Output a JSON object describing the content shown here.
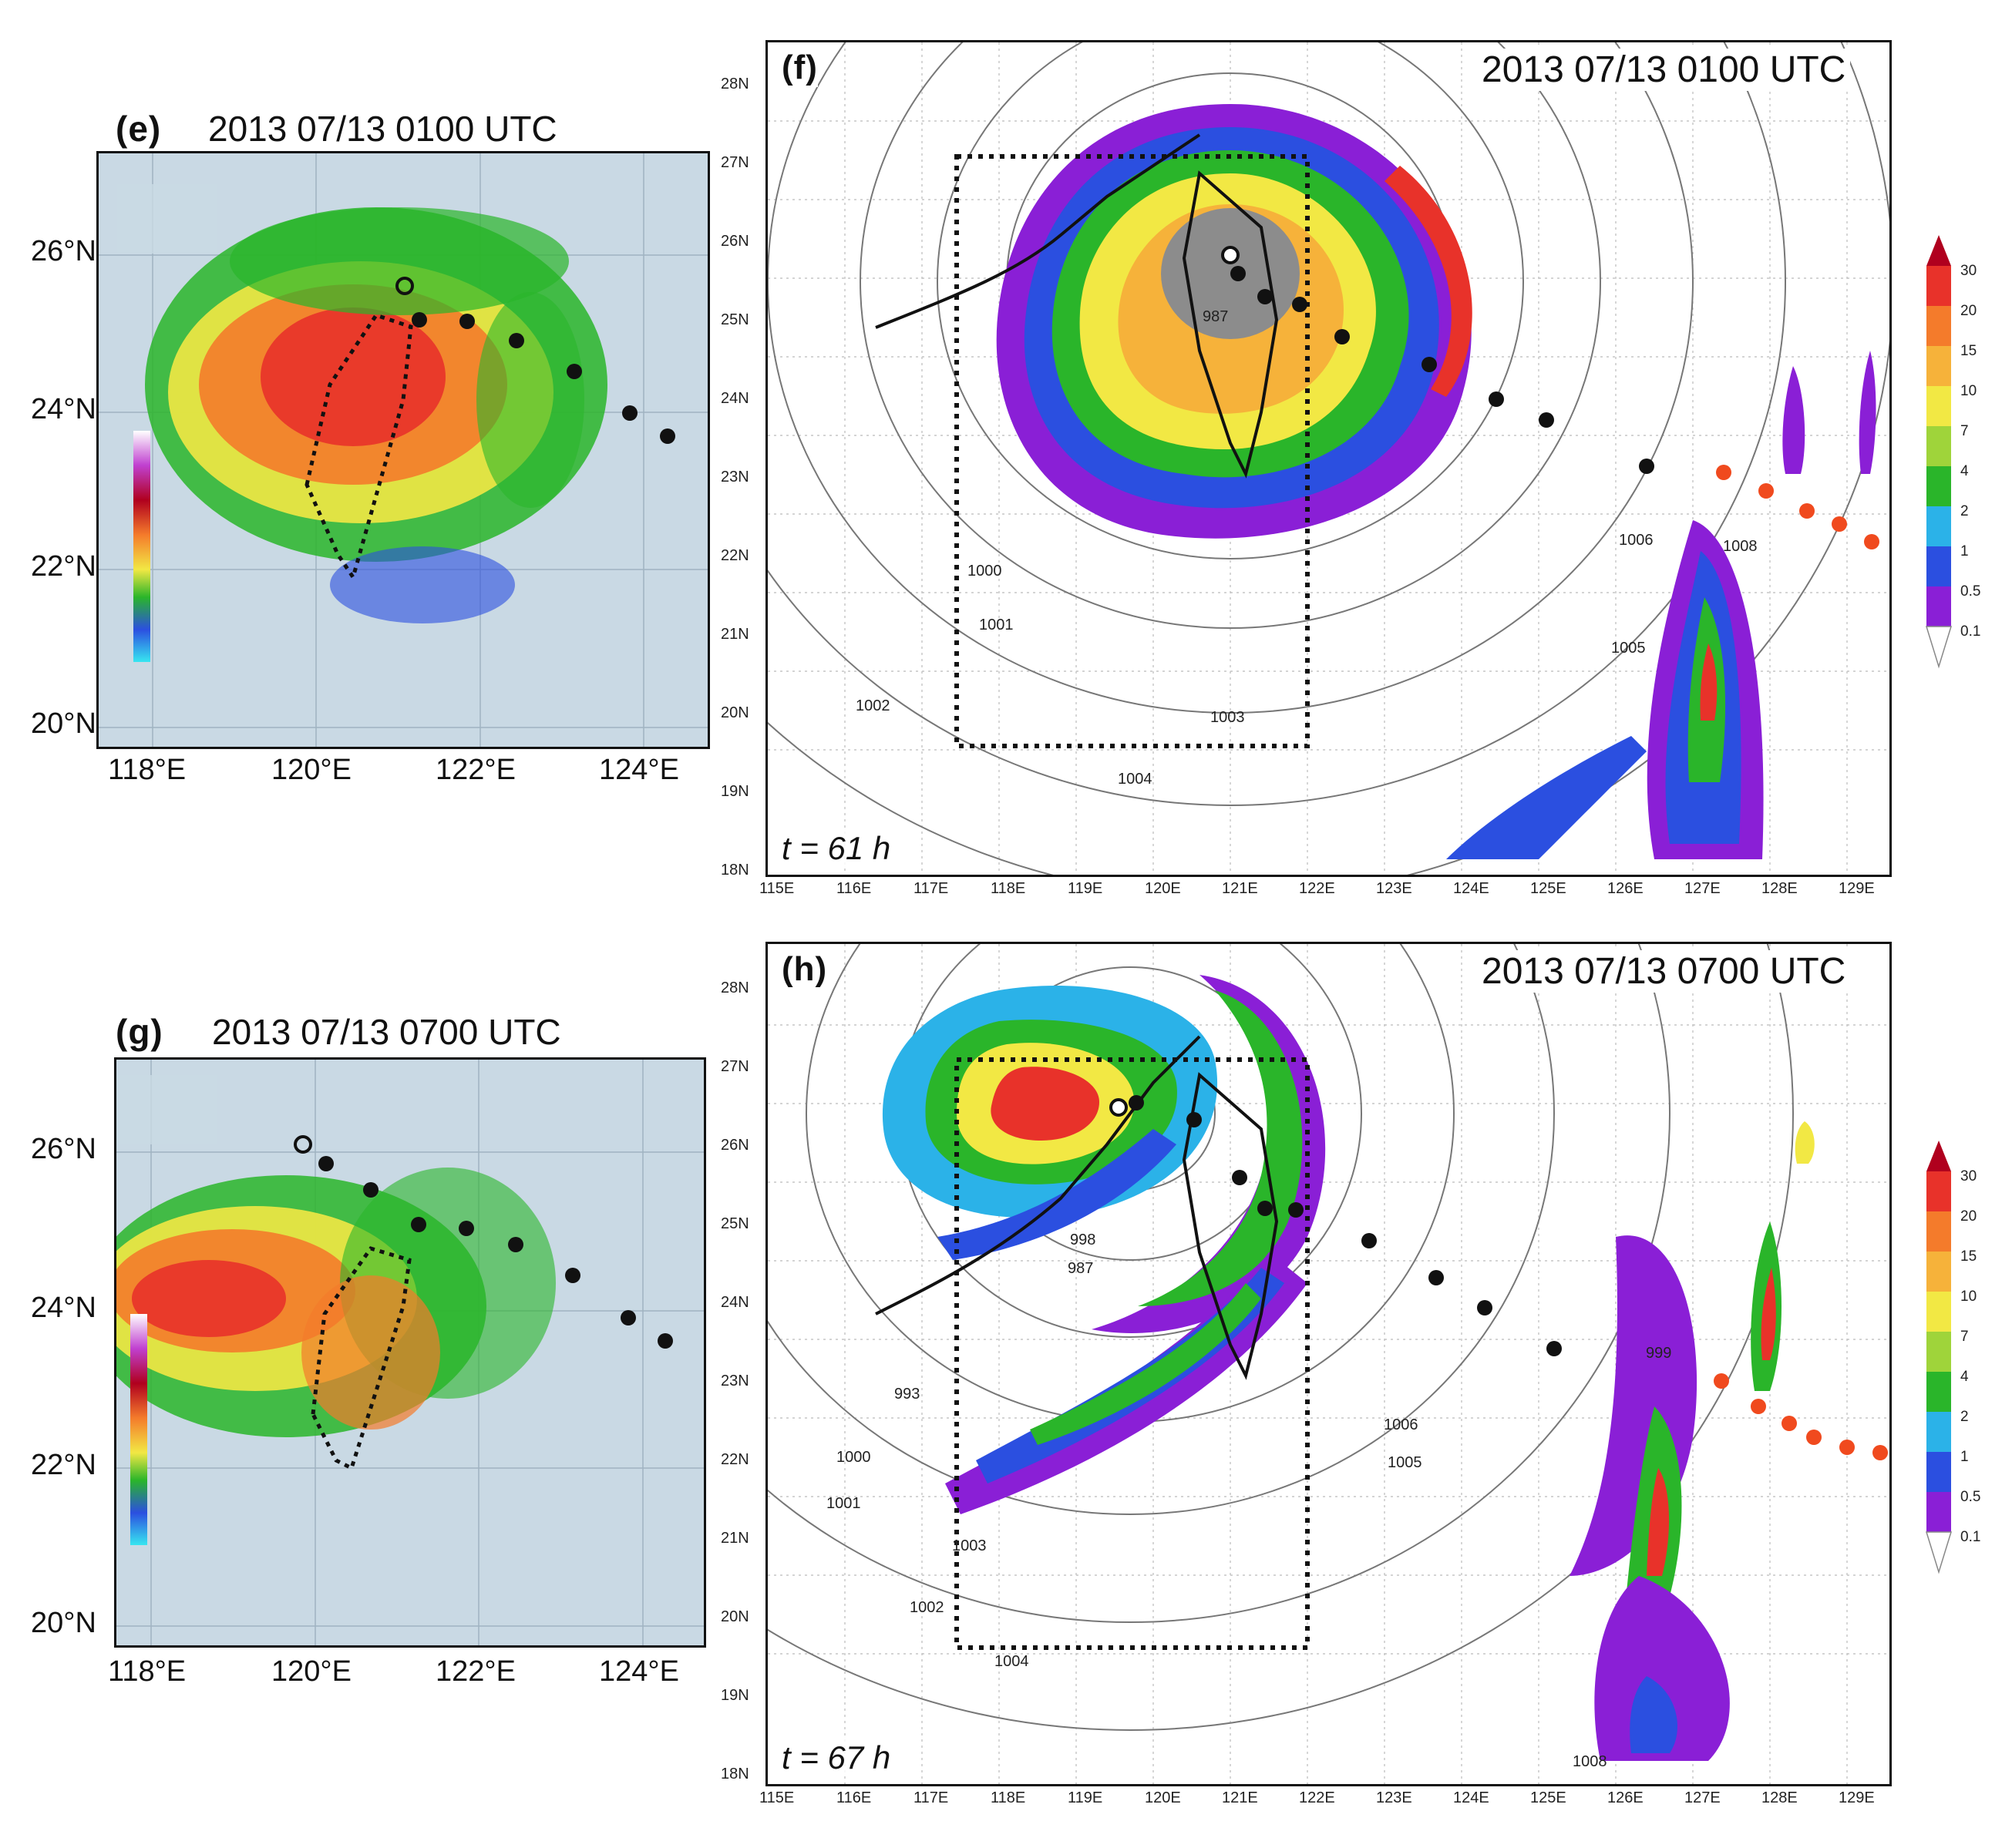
{
  "panels": [
    {
      "id": "e",
      "label": "(e)",
      "title": "2013 07/13 0100 UTC",
      "type": "radar"
    },
    {
      "id": "f",
      "label": "(f)",
      "title": "2013 07/13 0100 UTC",
      "time": "t = 61 h",
      "type": "wrf"
    },
    {
      "id": "g",
      "label": "(g)",
      "title": "2013 07/13 0700 UTC",
      "type": "radar"
    },
    {
      "id": "h",
      "label": "(h)",
      "title": "2013 07/13 0700 UTC",
      "time": "t = 67 h",
      "type": "wrf"
    }
  ],
  "radar_axes": {
    "lat_labels": [
      "26°N",
      "24°N",
      "22°N",
      "20°N"
    ],
    "lon_labels": [
      "118°E",
      "120°E",
      "122°E",
      "124°E"
    ]
  },
  "wrf_axes": {
    "lat_labels": [
      "28N",
      "27N",
      "26N",
      "25N",
      "24N",
      "23N",
      "22N",
      "21N",
      "20N",
      "19N",
      "18N"
    ],
    "lon_labels": [
      "115E",
      "116E",
      "117E",
      "118E",
      "119E",
      "120E",
      "121E",
      "122E",
      "123E",
      "124E",
      "125E",
      "126E",
      "127E",
      "128E",
      "129E"
    ]
  },
  "colorbar": {
    "labels": [
      "30",
      "20",
      "15",
      "10",
      "7",
      "4",
      "2",
      "1",
      "0.5",
      "0.1"
    ],
    "colors": [
      "#b0001e",
      "#e8322a",
      "#f47b2b",
      "#f6b23a",
      "#f2e844",
      "#9fd43a",
      "#2ab52a",
      "#2bb2e8",
      "#2b4fe0",
      "#8a1fd6",
      "#ffffff"
    ]
  },
  "isobar_labels_f": [
    "1000",
    "1001",
    "1002",
    "1004",
    "1003",
    "1005",
    "987",
    "1008",
    "1006"
  ],
  "isobar_labels_h": [
    "1000",
    "1001",
    "1002",
    "1003",
    "1004",
    "1005",
    "1006",
    "1008",
    "987",
    "993",
    "998",
    "999"
  ],
  "track_colors": {
    "observed": "#111111",
    "forecast": "#f04a1e"
  }
}
